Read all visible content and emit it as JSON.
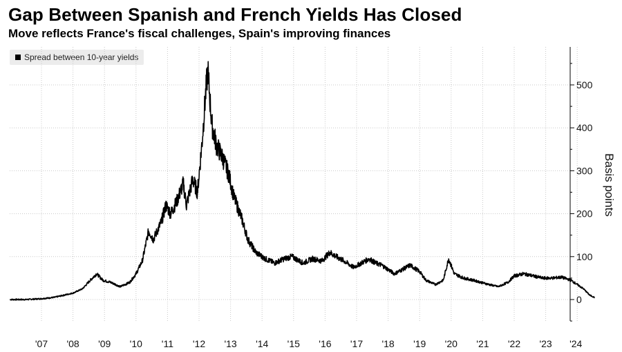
{
  "title": "Gap Between Spanish and French Yields Has Closed",
  "subtitle": "Move reflects France's fiscal challenges, Spain's improving finances",
  "legend": {
    "label": "Spread between 10-year yields",
    "color": "#000000"
  },
  "chart_data": {
    "type": "line",
    "ylabel": "Basis points",
    "ylim": [
      -50,
      560
    ],
    "yticks": [
      0,
      100,
      200,
      300,
      400,
      500
    ],
    "xticks": [
      "'07",
      "'08",
      "'09",
      "'10",
      "'11",
      "'12",
      "'13",
      "'14",
      "'15",
      "'16",
      "'17",
      "'18",
      "'19",
      "'20",
      "'21",
      "'22",
      "'23",
      "'24"
    ],
    "xlim": [
      2006.0,
      2024.65
    ],
    "grid": true,
    "series": [
      {
        "name": "Spread between 10-year yields",
        "color": "#000000",
        "points": [
          [
            2006.0,
            0
          ],
          [
            2006.5,
            0
          ],
          [
            2007.0,
            2
          ],
          [
            2007.4,
            5
          ],
          [
            2007.7,
            10
          ],
          [
            2008.0,
            15
          ],
          [
            2008.3,
            25
          ],
          [
            2008.55,
            45
          ],
          [
            2008.75,
            60
          ],
          [
            2008.95,
            45
          ],
          [
            2009.2,
            40
          ],
          [
            2009.5,
            30
          ],
          [
            2009.8,
            40
          ],
          [
            2010.0,
            60
          ],
          [
            2010.2,
            90
          ],
          [
            2010.4,
            160
          ],
          [
            2010.55,
            140
          ],
          [
            2010.8,
            180
          ],
          [
            2010.95,
            220
          ],
          [
            2011.1,
            200
          ],
          [
            2011.3,
            230
          ],
          [
            2011.5,
            270
          ],
          [
            2011.6,
            220
          ],
          [
            2011.8,
            280
          ],
          [
            2011.95,
            250
          ],
          [
            2012.1,
            370
          ],
          [
            2012.2,
            470
          ],
          [
            2012.28,
            535
          ],
          [
            2012.4,
            410
          ],
          [
            2012.55,
            360
          ],
          [
            2012.75,
            330
          ],
          [
            2012.95,
            290
          ],
          [
            2013.1,
            240
          ],
          [
            2013.35,
            190
          ],
          [
            2013.55,
            140
          ],
          [
            2013.8,
            110
          ],
          [
            2014.1,
            95
          ],
          [
            2014.4,
            85
          ],
          [
            2014.7,
            95
          ],
          [
            2014.95,
            100
          ],
          [
            2015.3,
            85
          ],
          [
            2015.6,
            95
          ],
          [
            2015.9,
            90
          ],
          [
            2016.15,
            110
          ],
          [
            2016.35,
            100
          ],
          [
            2016.6,
            90
          ],
          [
            2016.9,
            75
          ],
          [
            2017.15,
            85
          ],
          [
            2017.4,
            95
          ],
          [
            2017.6,
            85
          ],
          [
            2017.8,
            80
          ],
          [
            2018.0,
            70
          ],
          [
            2018.2,
            60
          ],
          [
            2018.45,
            70
          ],
          [
            2018.7,
            80
          ],
          [
            2019.0,
            65
          ],
          [
            2019.2,
            45
          ],
          [
            2019.5,
            35
          ],
          [
            2019.75,
            45
          ],
          [
            2019.92,
            95
          ],
          [
            2020.1,
            60
          ],
          [
            2020.4,
            50
          ],
          [
            2020.7,
            45
          ],
          [
            2020.95,
            40
          ],
          [
            2021.2,
            35
          ],
          [
            2021.5,
            30
          ],
          [
            2021.8,
            40
          ],
          [
            2022.0,
            55
          ],
          [
            2022.3,
            60
          ],
          [
            2022.6,
            55
          ],
          [
            2022.9,
            50
          ],
          [
            2023.2,
            50
          ],
          [
            2023.5,
            52
          ],
          [
            2023.8,
            45
          ],
          [
            2024.0,
            35
          ],
          [
            2024.2,
            25
          ],
          [
            2024.4,
            10
          ],
          [
            2024.55,
            5
          ]
        ]
      }
    ]
  }
}
